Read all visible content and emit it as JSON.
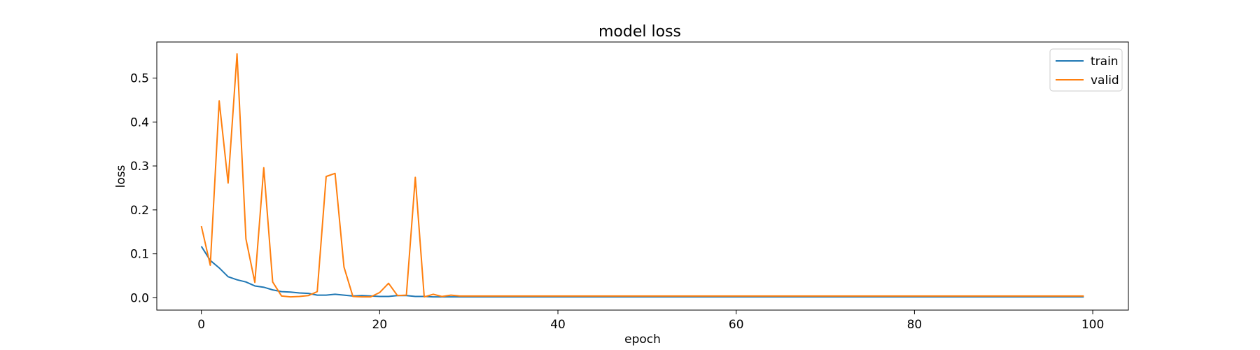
{
  "chart_data": {
    "type": "line",
    "title": "model loss",
    "xlabel": "epoch",
    "ylabel": "loss",
    "xlim": [
      -5,
      104
    ],
    "ylim": [
      -0.028,
      0.582
    ],
    "xticks": [
      0,
      20,
      40,
      60,
      80,
      100
    ],
    "yticks": [
      0.0,
      0.1,
      0.2,
      0.3,
      0.4,
      0.5
    ],
    "legend_position": "top-right",
    "grid": false,
    "series": [
      {
        "name": "train",
        "color": "#1f77b4",
        "x": [
          0,
          1,
          2,
          3,
          4,
          5,
          6,
          7,
          8,
          9,
          10,
          11,
          12,
          13,
          14,
          15,
          16,
          17,
          18,
          19,
          20,
          21,
          22,
          23,
          24,
          25,
          26,
          27,
          28,
          29,
          30,
          31,
          32,
          33,
          34,
          35,
          36,
          37,
          38,
          39,
          40,
          41,
          42,
          43,
          44,
          45,
          46,
          47,
          48,
          49,
          50,
          51,
          52,
          53,
          54,
          55,
          56,
          57,
          58,
          59,
          60,
          61,
          62,
          63,
          64,
          65,
          66,
          67,
          68,
          69,
          70,
          71,
          72,
          73,
          74,
          75,
          76,
          77,
          78,
          79,
          80,
          81,
          82,
          83,
          84,
          85,
          86,
          87,
          88,
          89,
          90,
          91,
          92,
          93,
          94,
          95,
          96,
          97,
          98,
          99
        ],
        "y": [
          0.117,
          0.085,
          0.068,
          0.048,
          0.041,
          0.036,
          0.027,
          0.024,
          0.018,
          0.014,
          0.013,
          0.011,
          0.01,
          0.006,
          0.006,
          0.008,
          0.006,
          0.004,
          0.005,
          0.004,
          0.003,
          0.003,
          0.005,
          0.005,
          0.003,
          0.003,
          0.002,
          0.002,
          0.002,
          0.002,
          0.002,
          0.002,
          0.002,
          0.002,
          0.002,
          0.002,
          0.002,
          0.002,
          0.002,
          0.002,
          0.002,
          0.002,
          0.002,
          0.002,
          0.002,
          0.002,
          0.002,
          0.002,
          0.002,
          0.002,
          0.002,
          0.002,
          0.002,
          0.002,
          0.002,
          0.002,
          0.002,
          0.002,
          0.002,
          0.002,
          0.002,
          0.002,
          0.002,
          0.002,
          0.002,
          0.002,
          0.002,
          0.002,
          0.002,
          0.002,
          0.002,
          0.002,
          0.002,
          0.002,
          0.002,
          0.002,
          0.002,
          0.002,
          0.002,
          0.002,
          0.002,
          0.002,
          0.002,
          0.002,
          0.002,
          0.002,
          0.002,
          0.002,
          0.002,
          0.002,
          0.002,
          0.002,
          0.002,
          0.002,
          0.002,
          0.002,
          0.002,
          0.002,
          0.002,
          0.002
        ]
      },
      {
        "name": "valid",
        "color": "#ff7f0e",
        "x": [
          0,
          1,
          2,
          3,
          4,
          5,
          6,
          7,
          8,
          9,
          10,
          11,
          12,
          13,
          14,
          15,
          16,
          17,
          18,
          19,
          20,
          21,
          22,
          23,
          24,
          25,
          26,
          27,
          28,
          29,
          30,
          31,
          32,
          33,
          34,
          35,
          36,
          37,
          38,
          39,
          40,
          41,
          42,
          43,
          44,
          45,
          46,
          47,
          48,
          49,
          50,
          51,
          52,
          53,
          54,
          55,
          56,
          57,
          58,
          59,
          60,
          61,
          62,
          63,
          64,
          65,
          66,
          67,
          68,
          69,
          70,
          71,
          72,
          73,
          74,
          75,
          76,
          77,
          78,
          79,
          80,
          81,
          82,
          83,
          84,
          85,
          86,
          87,
          88,
          89,
          90,
          91,
          92,
          93,
          94,
          95,
          96,
          97,
          98,
          99
        ],
        "y": [
          0.163,
          0.074,
          0.448,
          0.261,
          0.555,
          0.134,
          0.035,
          0.296,
          0.036,
          0.004,
          0.002,
          0.003,
          0.005,
          0.014,
          0.276,
          0.283,
          0.07,
          0.003,
          0.002,
          0.002,
          0.012,
          0.033,
          0.005,
          0.006,
          0.274,
          0.002,
          0.008,
          0.003,
          0.006,
          0.004,
          0.004,
          0.004,
          0.004,
          0.004,
          0.004,
          0.004,
          0.004,
          0.004,
          0.004,
          0.004,
          0.004,
          0.004,
          0.004,
          0.004,
          0.004,
          0.004,
          0.004,
          0.004,
          0.004,
          0.004,
          0.004,
          0.004,
          0.004,
          0.004,
          0.004,
          0.004,
          0.004,
          0.004,
          0.004,
          0.004,
          0.004,
          0.004,
          0.004,
          0.004,
          0.004,
          0.004,
          0.004,
          0.004,
          0.004,
          0.004,
          0.004,
          0.004,
          0.004,
          0.004,
          0.004,
          0.004,
          0.004,
          0.004,
          0.004,
          0.004,
          0.004,
          0.004,
          0.004,
          0.004,
          0.004,
          0.004,
          0.004,
          0.004,
          0.004,
          0.004,
          0.004,
          0.004,
          0.004,
          0.004,
          0.004,
          0.004,
          0.004,
          0.004,
          0.004,
          0.004
        ]
      }
    ]
  }
}
